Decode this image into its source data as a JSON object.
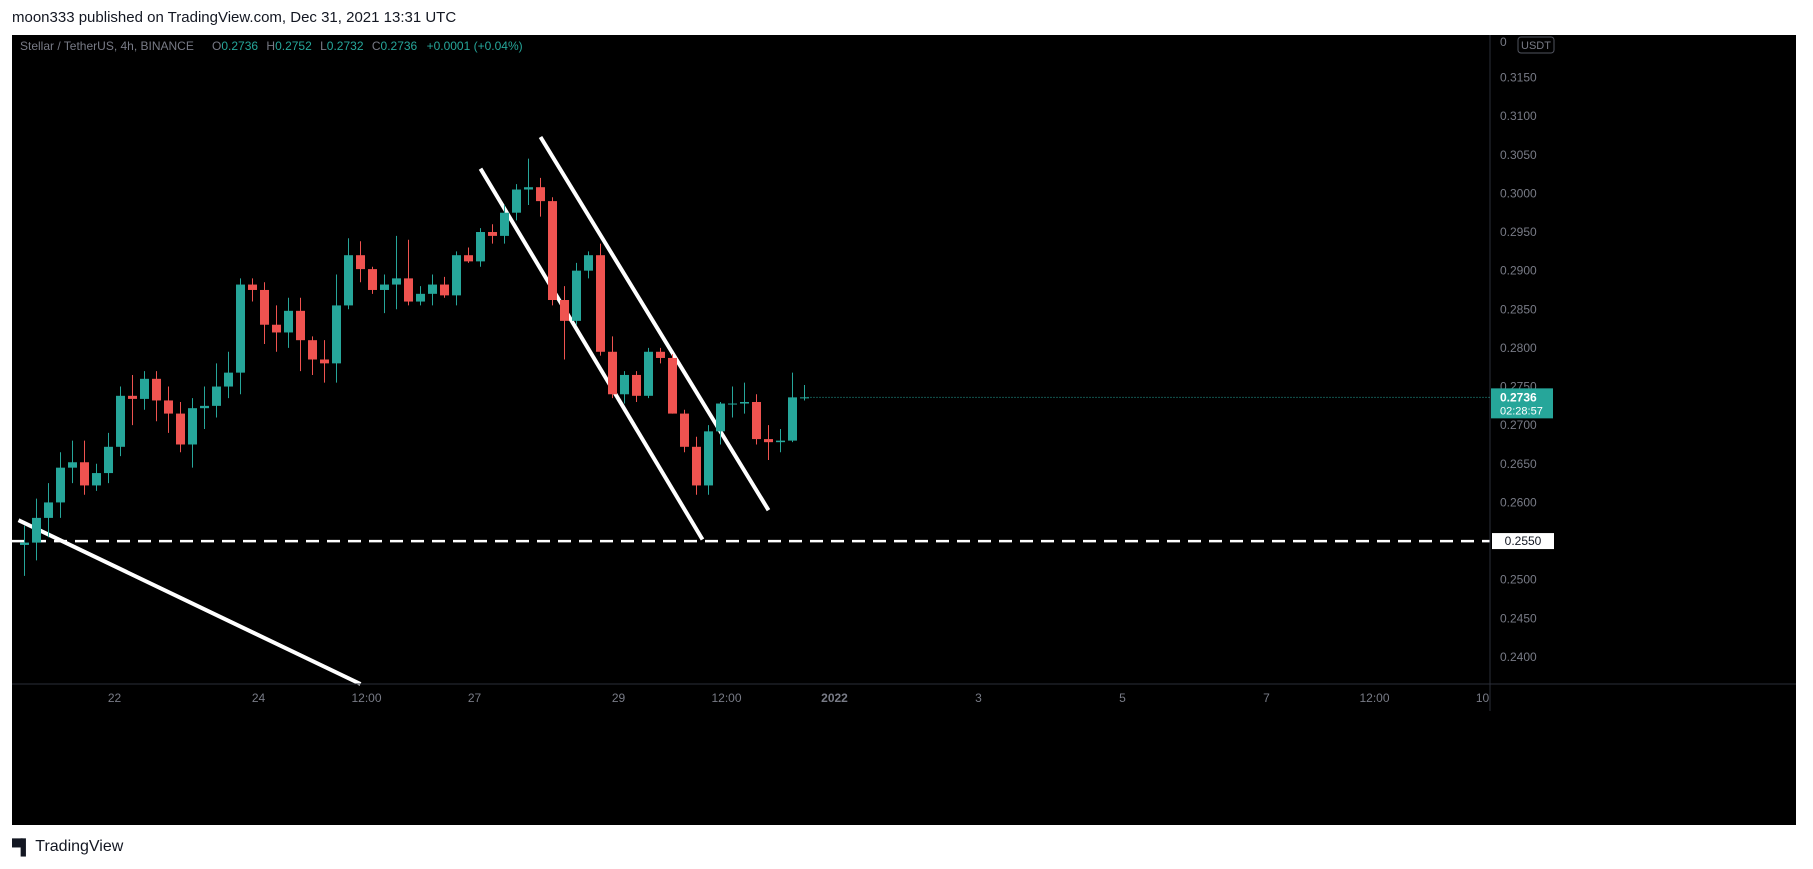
{
  "header": {
    "published": "moon333 published on TradingView.com, Dec 31, 2021 13:31 UTC"
  },
  "legend": {
    "symbol": "Stellar / TetherUS, 4h, BINANCE",
    "o_label": "O",
    "o_value": "0.2736",
    "h_label": "H",
    "h_value": "0.2752",
    "l_label": "L",
    "l_value": "0.2732",
    "c_label": "C",
    "c_value": "0.2736",
    "change": "+0.0001 (+0.04%)"
  },
  "price_axis": {
    "currency": "USDT",
    "top_partial_label": "0",
    "ticks": [
      "0.3150",
      "0.3100",
      "0.3050",
      "0.3000",
      "0.2950",
      "0.2900",
      "0.2850",
      "0.2800",
      "0.2750",
      "0.2700",
      "0.2650",
      "0.2600",
      "0.2500",
      "0.2450",
      "0.2400"
    ],
    "current_price": "0.2736",
    "countdown": "02:28:57",
    "level_label": "0.2550"
  },
  "footer": {
    "brand": "TradingView"
  },
  "colors": {
    "up": "#26a69a",
    "down": "#ef5350",
    "background": "#000000",
    "drawing": "#ffffff"
  },
  "chart_data": {
    "type": "candlestick",
    "title": "Stellar / TetherUS, 4h, BINANCE",
    "ylim": [
      0.2365,
      0.3205
    ],
    "time_ticks": [
      {
        "label": "22",
        "bar": 7.5
      },
      {
        "label": "24",
        "bar": 19.5
      },
      {
        "label": "12:00",
        "bar": 28.5
      },
      {
        "label": "27",
        "bar": 37.5
      },
      {
        "label": "29",
        "bar": 49.5
      },
      {
        "label": "12:00",
        "bar": 58.5
      },
      {
        "label": "2022",
        "bar": 67.5,
        "bold": true
      },
      {
        "label": "3",
        "bar": 79.5
      },
      {
        "label": "5",
        "bar": 91.5
      },
      {
        "label": "7",
        "bar": 103.5
      },
      {
        "label": "12:00",
        "bar": 112.5
      },
      {
        "label": "10",
        "bar": 121.5
      }
    ],
    "candles": [
      [
        0.2545,
        0.257,
        0.2505,
        0.2548
      ],
      [
        0.2548,
        0.2605,
        0.2525,
        0.258
      ],
      [
        0.258,
        0.2625,
        0.2555,
        0.26
      ],
      [
        0.26,
        0.2665,
        0.258,
        0.2645
      ],
      [
        0.2645,
        0.268,
        0.2625,
        0.2652
      ],
      [
        0.2652,
        0.268,
        0.261,
        0.2622
      ],
      [
        0.2622,
        0.265,
        0.2615,
        0.2638
      ],
      [
        0.2638,
        0.269,
        0.2625,
        0.2672
      ],
      [
        0.2672,
        0.275,
        0.266,
        0.2738
      ],
      [
        0.2738,
        0.2765,
        0.27,
        0.2734
      ],
      [
        0.2734,
        0.277,
        0.272,
        0.276
      ],
      [
        0.276,
        0.277,
        0.2705,
        0.2732
      ],
      [
        0.2732,
        0.275,
        0.269,
        0.2715
      ],
      [
        0.2715,
        0.273,
        0.2665,
        0.2675
      ],
      [
        0.2675,
        0.2735,
        0.2645,
        0.2722
      ],
      [
        0.2722,
        0.275,
        0.2695,
        0.2725
      ],
      [
        0.2725,
        0.278,
        0.271,
        0.275
      ],
      [
        0.275,
        0.2795,
        0.2735,
        0.2768
      ],
      [
        0.2768,
        0.289,
        0.274,
        0.2882
      ],
      [
        0.2882,
        0.289,
        0.286,
        0.2875
      ],
      [
        0.2875,
        0.2885,
        0.2805,
        0.283
      ],
      [
        0.283,
        0.2855,
        0.2795,
        0.282
      ],
      [
        0.282,
        0.2865,
        0.28,
        0.2848
      ],
      [
        0.2848,
        0.2865,
        0.277,
        0.281
      ],
      [
        0.281,
        0.2815,
        0.2765,
        0.2785
      ],
      [
        0.2785,
        0.281,
        0.2755,
        0.278
      ],
      [
        0.278,
        0.2895,
        0.2755,
        0.2855
      ],
      [
        0.2855,
        0.2942,
        0.285,
        0.292
      ],
      [
        0.292,
        0.2938,
        0.2885,
        0.2902
      ],
      [
        0.2902,
        0.2905,
        0.287,
        0.2875
      ],
      [
        0.2875,
        0.2895,
        0.2845,
        0.2882
      ],
      [
        0.2882,
        0.2945,
        0.285,
        0.289
      ],
      [
        0.289,
        0.294,
        0.2855,
        0.286
      ],
      [
        0.286,
        0.288,
        0.2855,
        0.287
      ],
      [
        0.287,
        0.2895,
        0.2855,
        0.2882
      ],
      [
        0.2882,
        0.2892,
        0.2865,
        0.2868
      ],
      [
        0.2868,
        0.2925,
        0.2855,
        0.292
      ],
      [
        0.292,
        0.293,
        0.291,
        0.2912
      ],
      [
        0.2912,
        0.2955,
        0.2905,
        0.295
      ],
      [
        0.295,
        0.296,
        0.2935,
        0.2945
      ],
      [
        0.2945,
        0.2985,
        0.2935,
        0.2975
      ],
      [
        0.2975,
        0.3012,
        0.2965,
        0.3005
      ],
      [
        0.3005,
        0.3045,
        0.2985,
        0.3008
      ],
      [
        0.3008,
        0.302,
        0.297,
        0.299
      ],
      [
        0.299,
        0.2995,
        0.2855,
        0.2862
      ],
      [
        0.2862,
        0.288,
        0.2785,
        0.2835
      ],
      [
        0.2835,
        0.291,
        0.283,
        0.29
      ],
      [
        0.29,
        0.2925,
        0.289,
        0.292
      ],
      [
        0.292,
        0.2935,
        0.279,
        0.2795
      ],
      [
        0.2795,
        0.2815,
        0.2735,
        0.274
      ],
      [
        0.274,
        0.277,
        0.2728,
        0.2765
      ],
      [
        0.2765,
        0.277,
        0.273,
        0.2738
      ],
      [
        0.2738,
        0.28,
        0.2735,
        0.2795
      ],
      [
        0.2795,
        0.28,
        0.278,
        0.2787
      ],
      [
        0.2787,
        0.2792,
        0.2715,
        0.2715
      ],
      [
        0.2715,
        0.272,
        0.2665,
        0.2672
      ],
      [
        0.2672,
        0.2685,
        0.261,
        0.2622
      ],
      [
        0.2622,
        0.27,
        0.261,
        0.2692
      ],
      [
        0.2692,
        0.273,
        0.2675,
        0.2728
      ],
      [
        0.2728,
        0.275,
        0.271,
        0.2728
      ],
      [
        0.2728,
        0.2755,
        0.2715,
        0.273
      ],
      [
        0.273,
        0.274,
        0.2675,
        0.2682
      ],
      [
        0.2682,
        0.27,
        0.2655,
        0.2678
      ],
      [
        0.2678,
        0.2695,
        0.2665,
        0.268
      ],
      [
        0.268,
        0.2768,
        0.2678,
        0.2736
      ],
      [
        0.2736,
        0.2752,
        0.2732,
        0.2736
      ]
    ],
    "horizontal_levels": [
      {
        "price": 0.255,
        "style": "dashed"
      }
    ],
    "trendlines": [
      {
        "from": [
          -0.5,
          0.2577
        ],
        "to": [
          28,
          0.2365
        ]
      },
      {
        "from": [
          38,
          0.3032
        ],
        "to": [
          56.5,
          0.2552
        ]
      },
      {
        "from": [
          43,
          0.3073
        ],
        "to": [
          62,
          0.259
        ]
      }
    ]
  }
}
